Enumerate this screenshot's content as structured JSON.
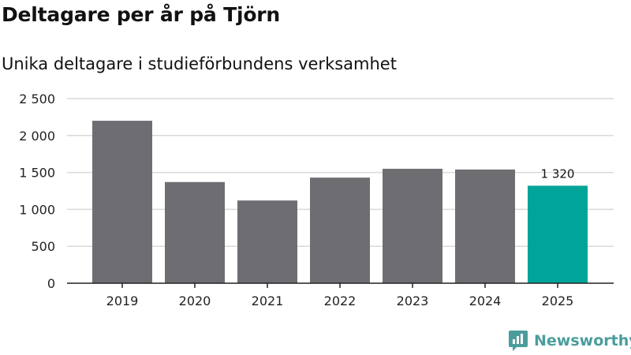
{
  "title": "Deltagare per år på Tjörn",
  "subtitle": "Unika deltagare i studieförbundens verksamhet",
  "brand": {
    "name": "Newsworthy",
    "icon": "newsworthy-logo-icon",
    "color": "#4a9d9c"
  },
  "colors": {
    "bar": "#6e6d72",
    "highlight": "#00a499",
    "grid": "#d9d9d9",
    "axis": "#222222"
  },
  "chart_data": {
    "type": "bar",
    "categories": [
      "2019",
      "2020",
      "2021",
      "2022",
      "2023",
      "2024",
      "2025"
    ],
    "values": [
      2200,
      1370,
      1120,
      1430,
      1550,
      1540,
      1320
    ],
    "highlight_index": 6,
    "data_labels": [
      {
        "index": 6,
        "text": "1 320"
      }
    ],
    "yticks": [
      {
        "value": 0,
        "label": "0"
      },
      {
        "value": 500,
        "label": "500"
      },
      {
        "value": 1000,
        "label": "1 000"
      },
      {
        "value": 1500,
        "label": "1 500"
      },
      {
        "value": 2000,
        "label": "2 000"
      },
      {
        "value": 2500,
        "label": "2 500"
      }
    ],
    "ylim": [
      0,
      2500
    ],
    "grid": true,
    "legend": "none"
  }
}
